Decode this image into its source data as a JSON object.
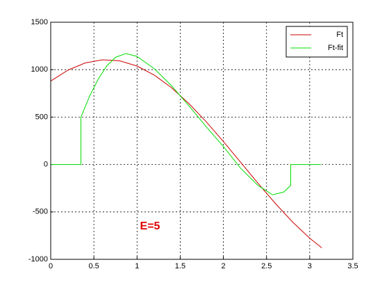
{
  "chart_data": {
    "type": "line",
    "xlim": [
      0,
      3.5
    ],
    "ylim": [
      -1000,
      1500
    ],
    "xticks": [
      0,
      0.5,
      1,
      1.5,
      2,
      2.5,
      3,
      3.5
    ],
    "yticks": [
      -1000,
      -500,
      0,
      500,
      1000,
      1500
    ],
    "grid": true,
    "legend": "northeast",
    "annotation": "E=5",
    "annotation_color": "#e00000",
    "series": [
      {
        "name": "Ft",
        "color": "#cc0000",
        "x": [
          0,
          0.2,
          0.4,
          0.6,
          0.8,
          1.0,
          1.2,
          1.4,
          1.6,
          1.8,
          2.0,
          2.2,
          2.4,
          2.6,
          2.8,
          3.0,
          3.14
        ],
        "values": [
          880,
          995,
          1071,
          1104,
          1093,
          1038,
          942,
          809,
          643,
          452,
          242,
          23,
          -197,
          -409,
          -605,
          -777,
          -879
        ]
      },
      {
        "name": "Ft-fit",
        "color": "#00dd00",
        "x": [
          0,
          0.35,
          0.35,
          0.45,
          0.55,
          0.65,
          0.75,
          0.87,
          1.0,
          1.2,
          1.4,
          1.6,
          1.8,
          2.0,
          2.2,
          2.4,
          2.57,
          2.7,
          2.78,
          2.78,
          3.13
        ],
        "values": [
          0,
          0,
          500,
          720,
          900,
          1040,
          1130,
          1170,
          1140,
          1010,
          830,
          620,
          400,
          190,
          -40,
          -220,
          -320,
          -290,
          -220,
          0,
          0
        ]
      }
    ]
  }
}
